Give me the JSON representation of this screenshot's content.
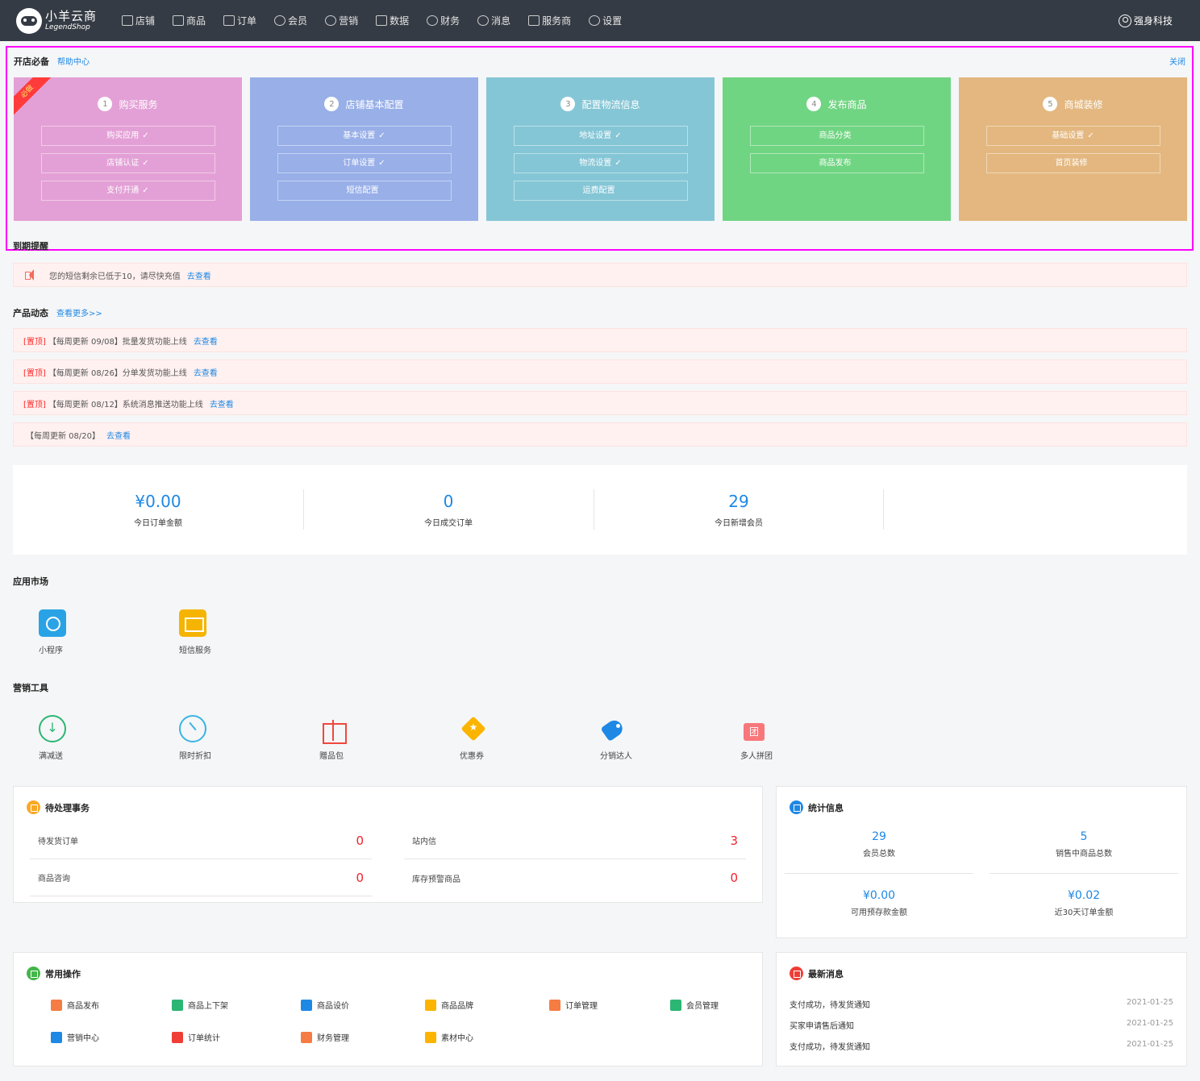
{
  "header": {
    "logo_cn": "小羊云商",
    "logo_en": "LegendShop",
    "nav": [
      "店铺",
      "商品",
      "订单",
      "会员",
      "营销",
      "数据",
      "财务",
      "消息",
      "服务商",
      "设置"
    ],
    "user": "强身科技"
  },
  "onboarding": {
    "title": "开店必备",
    "help_link": "帮助中心",
    "close": "关闭",
    "ribbon": "必做",
    "colors": [
      "#e3a0d6",
      "#98afe8",
      "#85c6d6",
      "#70d582",
      "#e3b77f"
    ],
    "steps": [
      {
        "num": "1",
        "title": "购买服务",
        "items": [
          {
            "label": "购买应用",
            "done": "✓"
          },
          {
            "label": "店铺认证",
            "done": "✓"
          },
          {
            "label": "支付开通",
            "done": "✓"
          }
        ]
      },
      {
        "num": "2",
        "title": "店铺基本配置",
        "items": [
          {
            "label": "基本设置",
            "done": "✓"
          },
          {
            "label": "订单设置",
            "done": "✓"
          },
          {
            "label": "短信配置",
            "done": ""
          }
        ]
      },
      {
        "num": "3",
        "title": "配置物流信息",
        "items": [
          {
            "label": "地址设置",
            "done": "✓"
          },
          {
            "label": "物流设置",
            "done": "✓"
          },
          {
            "label": "运费配置",
            "done": ""
          }
        ]
      },
      {
        "num": "4",
        "title": "发布商品",
        "items": [
          {
            "label": "商品分类",
            "done": ""
          },
          {
            "label": "商品发布",
            "done": ""
          }
        ]
      },
      {
        "num": "5",
        "title": "商城装修",
        "items": [
          {
            "label": "基础设置",
            "done": "✓"
          },
          {
            "label": "首页装修",
            "done": ""
          }
        ]
      }
    ]
  },
  "expiry": {
    "title": "到期提醒",
    "notice": "您的短信剩余已低于10，请尽快充值",
    "link": "去查看"
  },
  "news": {
    "title": "产品动态",
    "more": "查看更多>>",
    "items": [
      {
        "tag": "[置顶]",
        "text": "【每周更新 09/08】批量发货功能上线",
        "link": "去查看"
      },
      {
        "tag": "[置顶]",
        "text": "【每周更新 08/26】分单发货功能上线",
        "link": "去查看"
      },
      {
        "tag": "[置顶]",
        "text": "【每周更新 08/12】系统消息推送功能上线",
        "link": "去查看"
      },
      {
        "tag": "",
        "text": "【每周更新 08/20】",
        "link": "去查看"
      }
    ]
  },
  "today": [
    {
      "value": "¥0.00",
      "label": "今日订单金额"
    },
    {
      "value": "0",
      "label": "今日成交订单"
    },
    {
      "value": "29",
      "label": "今日新增会员"
    }
  ],
  "app_market": {
    "title": "应用市场",
    "items": [
      {
        "label": "小程序",
        "icon": "mini-program-icon"
      },
      {
        "label": "短信服务",
        "icon": "sms-icon"
      }
    ]
  },
  "marketing": {
    "title": "营销工具",
    "items": [
      {
        "label": "满减送",
        "icon": "discount-icon"
      },
      {
        "label": "限时折扣",
        "icon": "timer-icon"
      },
      {
        "label": "赠品包",
        "icon": "gift-icon"
      },
      {
        "label": "优惠券",
        "icon": "coupon-icon"
      },
      {
        "label": "分销达人",
        "icon": "tag-icon"
      },
      {
        "label": "多人拼团",
        "icon": "group-buy-icon"
      }
    ]
  },
  "pending": {
    "title": "待处理事务",
    "items": [
      {
        "label": "待发货订单",
        "value": "0"
      },
      {
        "label": "站内信",
        "value": "3"
      },
      {
        "label": "商品咨询",
        "value": "0"
      },
      {
        "label": "库存预警商品",
        "value": "0"
      }
    ]
  },
  "statistics": {
    "title": "统计信息",
    "items": [
      {
        "value": "29",
        "label": "会员总数"
      },
      {
        "value": "5",
        "label": "销售中商品总数"
      },
      {
        "value": "¥0.00",
        "label": "可用预存款金额"
      },
      {
        "value": "¥0.02",
        "label": "近30天订单金额"
      }
    ]
  },
  "common_ops": {
    "title": "常用操作",
    "items": [
      {
        "label": "商品发布",
        "color": "#f57c42"
      },
      {
        "label": "商品上下架",
        "color": "#2bb673"
      },
      {
        "label": "商品设价",
        "color": "#1e88e5"
      },
      {
        "label": "商品品牌",
        "color": "#fbb400"
      },
      {
        "label": "订单管理",
        "color": "#f57c42"
      },
      {
        "label": "会员管理",
        "color": "#2bb673"
      },
      {
        "label": "营销中心",
        "color": "#1e88e5"
      },
      {
        "label": "订单统计",
        "color": "#ef3e36"
      },
      {
        "label": "财务管理",
        "color": "#f57c42"
      },
      {
        "label": "素材中心",
        "color": "#fbb400"
      }
    ]
  },
  "messages": {
    "title": "最新消息",
    "items": [
      {
        "text": "支付成功，待发货通知",
        "date": "2021-01-25"
      },
      {
        "text": "买家申请售后通知",
        "date": "2021-01-25"
      },
      {
        "text": "支付成功，待发货通知",
        "date": "2021-01-25"
      }
    ]
  }
}
